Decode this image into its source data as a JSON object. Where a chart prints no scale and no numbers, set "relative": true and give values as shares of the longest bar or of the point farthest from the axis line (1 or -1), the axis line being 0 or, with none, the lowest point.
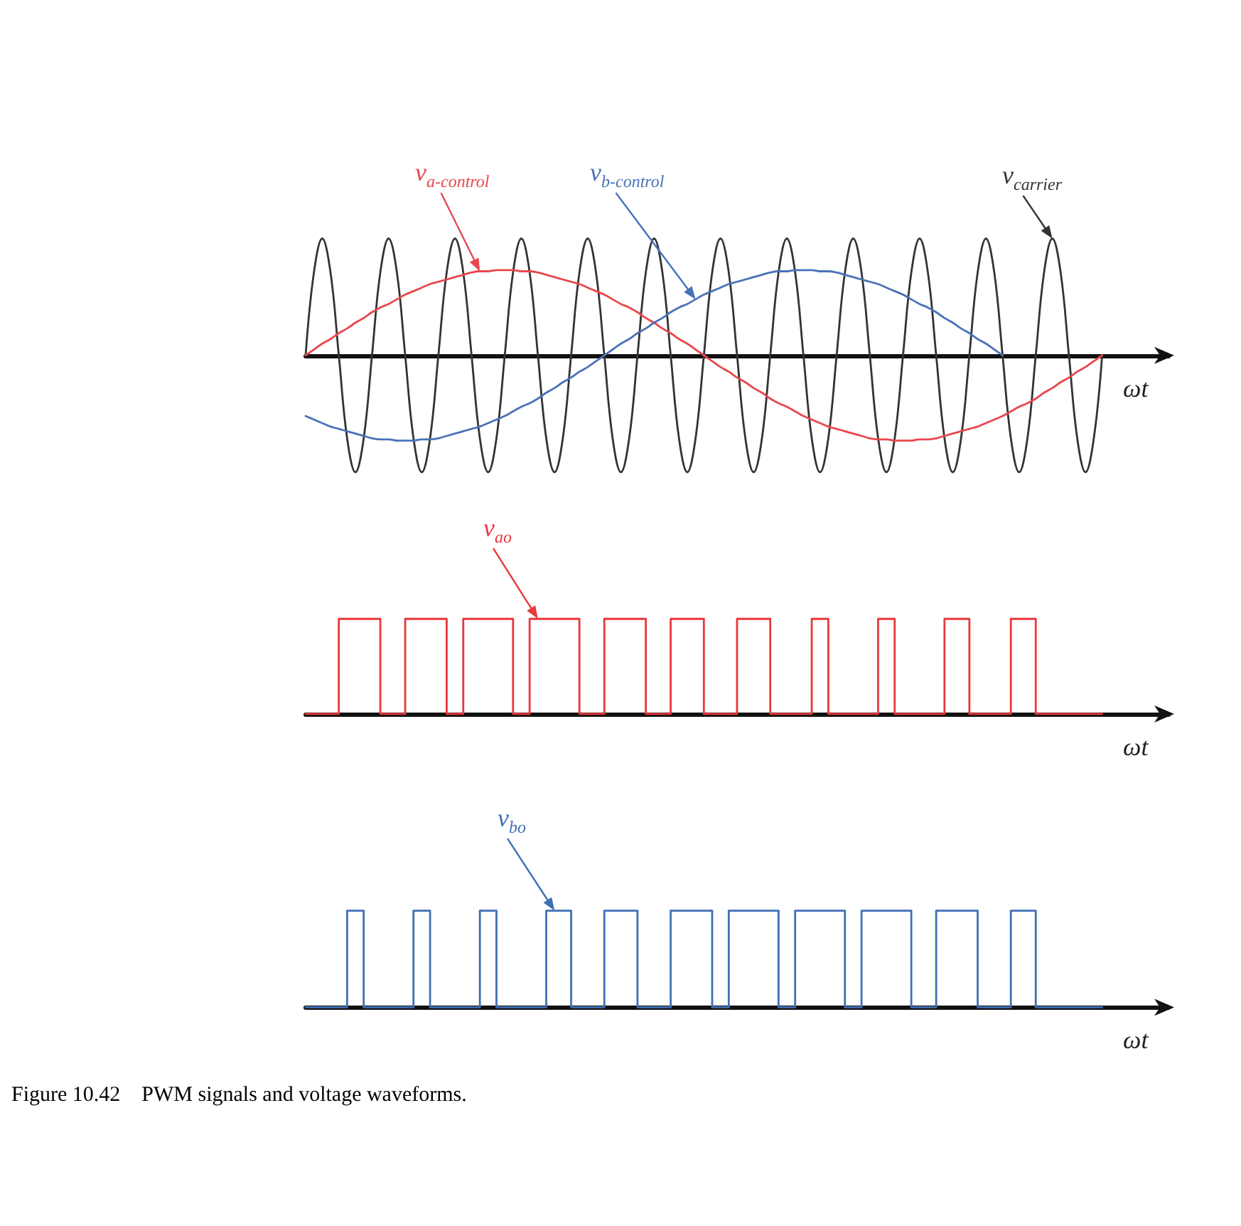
{
  "chart_data": [
    {
      "type": "line",
      "relative": true,
      "xlabel": "ωt",
      "categories": [
        null,
        null,
        null,
        null,
        null,
        null,
        null,
        null,
        null,
        null,
        null,
        null,
        null,
        null,
        null,
        null,
        null,
        null,
        null,
        null,
        null,
        null,
        null,
        null,
        null,
        null,
        null,
        null,
        null,
        null,
        null,
        null,
        null,
        null,
        null,
        null,
        null,
        null,
        null,
        null,
        null,
        null,
        null,
        null,
        null,
        null,
        null,
        null,
        null,
        null,
        null,
        null,
        null,
        null,
        null,
        null,
        null,
        null,
        null,
        null,
        null,
        null,
        null,
        null,
        null,
        null,
        null,
        null,
        null,
        null,
        null,
        null,
        null,
        null,
        null,
        null,
        null,
        null,
        null,
        null,
        null,
        null,
        null,
        null,
        null,
        null,
        null,
        null,
        null,
        null,
        null,
        null,
        null,
        null,
        null,
        null,
        null,
        null,
        null,
        null,
        null,
        null,
        null,
        null,
        null
      ],
      "series": [
        {
          "name": "v$_{carrier}$",
          "color": "#333333",
          "values": [
            0,
            0.71,
            1,
            0.71,
            0,
            -0.71,
            -1,
            -0.71,
            0,
            0.71,
            1,
            0.71,
            0,
            -0.71,
            -1,
            -0.71,
            0,
            0.71,
            1,
            0.71,
            0,
            -0.71,
            -1,
            -0.71,
            0,
            0.71,
            1,
            0.71,
            0,
            -0.71,
            -1,
            -0.71,
            0,
            0.71,
            1,
            0.71,
            0,
            -0.71,
            -1,
            -0.71,
            0,
            0.71,
            1,
            0.71,
            0,
            -0.71,
            -1,
            -0.71,
            0,
            0.71,
            1,
            0.71,
            0,
            -0.71,
            -1,
            -0.71,
            0,
            0.71,
            1,
            0.71,
            0,
            -0.71,
            -1,
            -0.71,
            0,
            0.71,
            1,
            0.71,
            0,
            -0.71,
            -1,
            -0.71,
            0,
            0.71,
            1,
            0.71,
            0,
            -0.71,
            -1,
            -0.71,
            0,
            0.71,
            1,
            0.71,
            0,
            -0.71,
            -1,
            -0.71,
            0,
            0.71,
            1,
            0.71,
            0,
            -0.71,
            -1,
            -0.71,
            0,
            null,
            null,
            null,
            null,
            null,
            null,
            null,
            null
          ]
        },
        {
          "name": "v$_{a-control}$",
          "color": "#e8474c",
          "values": [
            0,
            0.05,
            0.1,
            0.14,
            0.19,
            0.23,
            0.28,
            0.32,
            0.37,
            0.41,
            0.44,
            0.48,
            0.52,
            0.55,
            0.58,
            0.61,
            0.63,
            0.65,
            0.67,
            0.69,
            0.71,
            0.72,
            0.72,
            0.73,
            0.73,
            0.73,
            0.72,
            0.72,
            0.71,
            0.69,
            0.67,
            0.65,
            0.63,
            0.61,
            0.58,
            0.55,
            0.52,
            0.48,
            0.44,
            0.41,
            0.37,
            0.32,
            0.28,
            0.23,
            0.19,
            0.14,
            0.1,
            0.05,
            0,
            -0.05,
            -0.1,
            -0.14,
            -0.19,
            -0.23,
            -0.28,
            -0.32,
            -0.37,
            -0.41,
            -0.44,
            -0.48,
            -0.52,
            -0.55,
            -0.58,
            -0.61,
            -0.63,
            -0.65,
            -0.67,
            -0.69,
            -0.71,
            -0.72,
            -0.72,
            -0.73,
            -0.73,
            -0.73,
            -0.72,
            -0.72,
            -0.71,
            -0.69,
            -0.67,
            -0.65,
            -0.63,
            -0.61,
            -0.58,
            -0.55,
            -0.52,
            -0.48,
            -0.44,
            -0.41,
            -0.37,
            -0.32,
            -0.28,
            -0.23,
            -0.19,
            -0.14,
            -0.1,
            -0.05,
            0,
            null,
            null,
            null,
            null,
            null,
            null,
            null,
            null
          ]
        },
        {
          "name": "v$_{b-control}$",
          "color": "#4a72b8",
          "values": [
            -0.52,
            -0.55,
            -0.58,
            -0.61,
            -0.63,
            -0.65,
            -0.67,
            -0.69,
            -0.71,
            -0.72,
            -0.72,
            -0.73,
            -0.73,
            -0.73,
            -0.72,
            -0.72,
            -0.71,
            -0.69,
            -0.67,
            -0.65,
            -0.63,
            -0.61,
            -0.58,
            -0.55,
            -0.52,
            -0.48,
            -0.44,
            -0.41,
            -0.37,
            -0.32,
            -0.28,
            -0.23,
            -0.19,
            -0.14,
            -0.1,
            -0.05,
            0,
            0.05,
            0.1,
            0.14,
            0.19,
            0.23,
            0.28,
            0.32,
            0.37,
            0.41,
            0.44,
            0.48,
            0.52,
            0.55,
            0.58,
            0.61,
            0.63,
            0.65,
            0.67,
            0.69,
            0.71,
            0.72,
            0.72,
            0.73,
            0.73,
            0.73,
            0.72,
            0.72,
            0.71,
            0.69,
            0.67,
            0.65,
            0.63,
            0.61,
            0.58,
            0.55,
            0.52,
            0.48,
            0.44,
            0.41,
            0.37,
            0.32,
            0.28,
            0.23,
            0.19,
            0.14,
            0.1,
            0.05,
            0,
            null,
            null,
            null,
            null,
            null,
            null,
            null,
            null,
            null,
            null,
            null,
            null,
            null,
            null,
            null,
            null,
            null,
            null,
            null,
            null
          ]
        }
      ]
    },
    {
      "type": "step",
      "relative": true,
      "xlabel": "ωt",
      "categories": [
        null,
        null,
        null,
        null,
        null,
        null,
        null,
        null,
        null,
        null,
        null,
        null,
        null,
        null,
        null,
        null,
        null,
        null,
        null,
        null,
        null,
        null,
        null,
        null,
        null,
        null,
        null,
        null,
        null,
        null,
        null,
        null,
        null,
        null,
        null,
        null,
        null,
        null,
        null,
        null,
        null,
        null,
        null,
        null,
        null,
        null,
        null,
        null,
        null,
        null,
        null,
        null,
        null,
        null,
        null,
        null,
        null,
        null,
        null,
        null,
        null,
        null,
        null,
        null,
        null,
        null,
        null,
        null,
        null,
        null,
        null,
        null,
        null,
        null,
        null,
        null,
        null,
        null,
        null,
        null,
        null,
        null,
        null,
        null,
        null,
        null,
        null,
        null,
        null,
        null,
        null,
        null,
        null,
        null,
        null,
        null,
        null,
        null,
        null,
        null,
        null,
        null,
        null,
        null,
        null
      ],
      "series": [
        {
          "name": "v$_{ao}$",
          "color": "#e8383d",
          "values": [
            0,
            0,
            0,
            0,
            0,
            1,
            1,
            1,
            1,
            1,
            0,
            0,
            0,
            1,
            1,
            1,
            1,
            1,
            0,
            0,
            1,
            1,
            1,
            1,
            1,
            1,
            0,
            0,
            1,
            1,
            1,
            1,
            1,
            1,
            0,
            0,
            0,
            1,
            1,
            1,
            1,
            1,
            0,
            0,
            0,
            1,
            1,
            1,
            1,
            0,
            0,
            0,
            0,
            1,
            1,
            1,
            1,
            0,
            0,
            0,
            0,
            0,
            1,
            1,
            0,
            0,
            0,
            0,
            0,
            0,
            1,
            1,
            0,
            0,
            0,
            0,
            0,
            0,
            1,
            1,
            1,
            0,
            0,
            0,
            0,
            0,
            1,
            1,
            1,
            0,
            0,
            0,
            0,
            0,
            0,
            0,
            0,
            null,
            null,
            null,
            null,
            null,
            null,
            null,
            null
          ]
        }
      ]
    },
    {
      "type": "step",
      "relative": true,
      "xlabel": "ωt",
      "categories": [
        null,
        null,
        null,
        null,
        null,
        null,
        null,
        null,
        null,
        null,
        null,
        null,
        null,
        null,
        null,
        null,
        null,
        null,
        null,
        null,
        null,
        null,
        null,
        null,
        null,
        null,
        null,
        null,
        null,
        null,
        null,
        null,
        null,
        null,
        null,
        null,
        null,
        null,
        null,
        null,
        null,
        null,
        null,
        null,
        null,
        null,
        null,
        null,
        null,
        null,
        null,
        null,
        null,
        null,
        null,
        null,
        null,
        null,
        null,
        null,
        null,
        null,
        null,
        null,
        null,
        null,
        null,
        null,
        null,
        null,
        null,
        null,
        null,
        null,
        null,
        null,
        null,
        null,
        null,
        null,
        null,
        null,
        null,
        null,
        null,
        null,
        null,
        null,
        null,
        null,
        null,
        null,
        null,
        null,
        null,
        null,
        null,
        null,
        null,
        null,
        null,
        null,
        null,
        null,
        null
      ],
      "series": [
        {
          "name": "v$_{bo}$",
          "color": "#3f6fb5",
          "values": [
            0,
            0,
            0,
            0,
            0,
            0,
            1,
            1,
            0,
            0,
            0,
            0,
            0,
            0,
            1,
            1,
            0,
            0,
            0,
            0,
            0,
            0,
            1,
            1,
            0,
            0,
            0,
            0,
            0,
            0,
            1,
            1,
            1,
            0,
            0,
            0,
            0,
            1,
            1,
            1,
            1,
            0,
            0,
            0,
            0,
            1,
            1,
            1,
            1,
            1,
            0,
            0,
            1,
            1,
            1,
            1,
            1,
            1,
            0,
            0,
            1,
            1,
            1,
            1,
            1,
            1,
            0,
            0,
            1,
            1,
            1,
            1,
            1,
            1,
            0,
            0,
            0,
            1,
            1,
            1,
            1,
            1,
            0,
            0,
            0,
            0,
            1,
            1,
            1,
            0,
            0,
            0,
            0,
            0,
            0,
            0,
            0,
            null,
            null,
            null,
            null,
            null,
            null,
            null,
            null
          ]
        }
      ],
      "annotations": [
        "Figure 10.42    PWM signals and voltage waveforms."
      ]
    }
  ]
}
